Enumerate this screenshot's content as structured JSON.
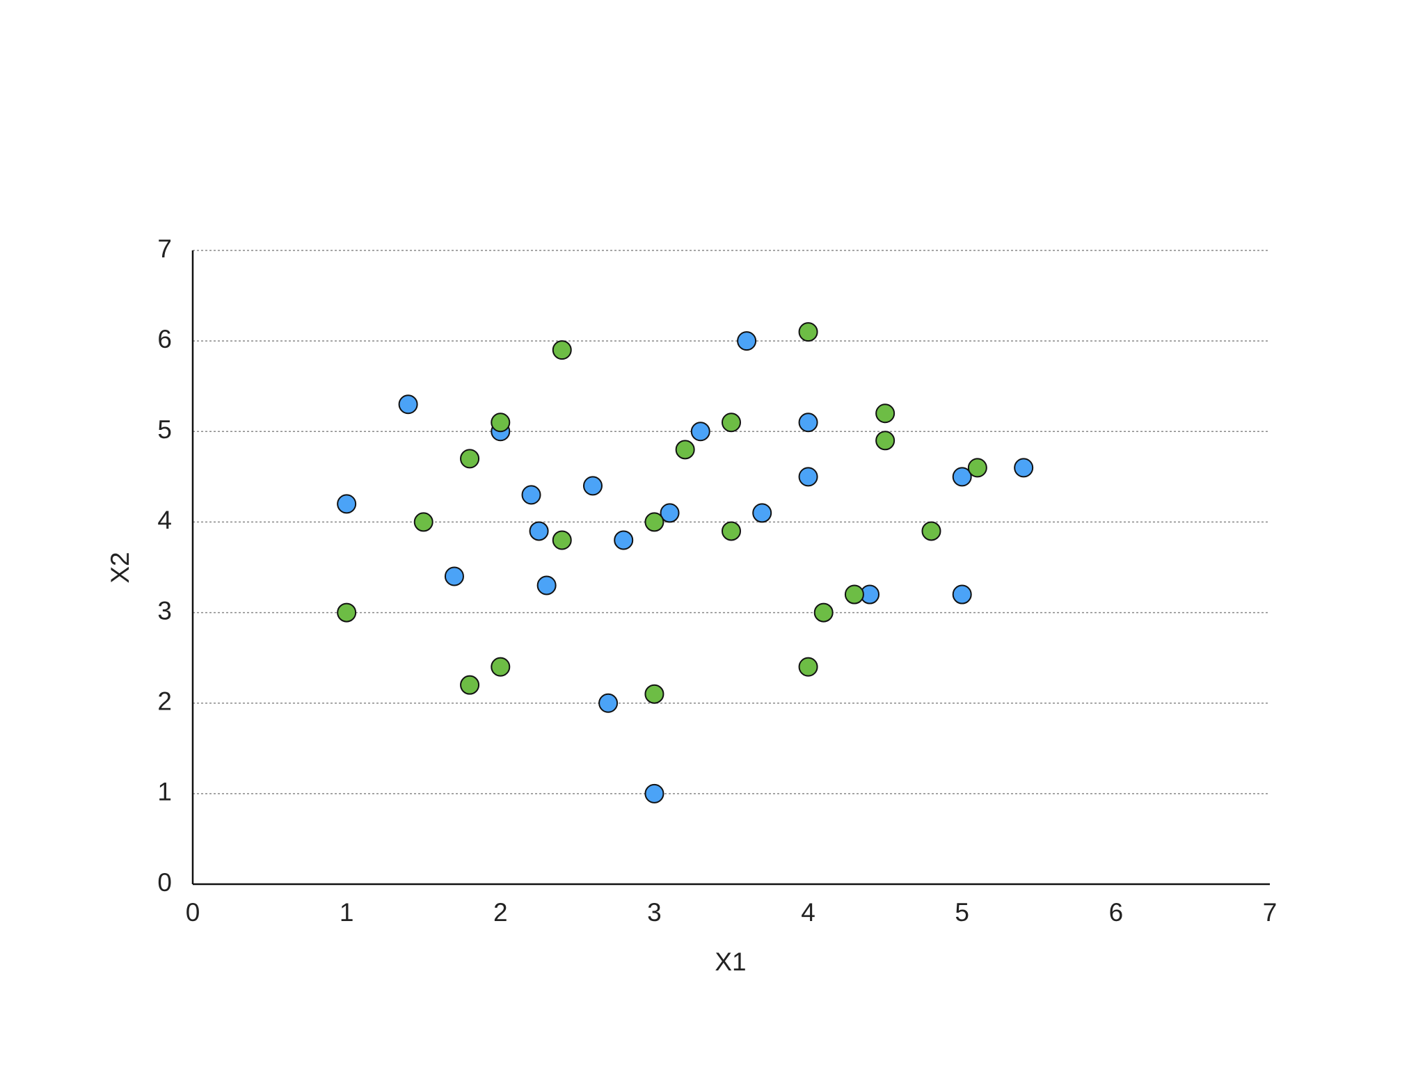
{
  "chart_data": {
    "type": "scatter",
    "xlabel": "X1",
    "ylabel": "X2",
    "xlim": [
      0,
      7
    ],
    "ylim": [
      0,
      7
    ],
    "xticks": [
      0,
      1,
      2,
      3,
      4,
      5,
      6,
      7
    ],
    "yticks": [
      0,
      1,
      2,
      3,
      4,
      5,
      6,
      7
    ],
    "grid": true,
    "series": [
      {
        "color": "#4ba3f7",
        "x": [
          1.4,
          1,
          2,
          1.7,
          2.2,
          2.25,
          2.3,
          2.6,
          2.8,
          2.7,
          3,
          3.1,
          3.3,
          3.6,
          3.7,
          4,
          4,
          4.4,
          5,
          5,
          5.4
        ],
        "values": [
          5.3,
          4.2,
          5,
          3.4,
          4.3,
          3.9,
          3.3,
          4.4,
          3.8,
          2,
          1,
          4.1,
          5,
          6,
          4.1,
          5.1,
          4.5,
          3.2,
          4.5,
          3.2,
          4.6
        ]
      },
      {
        "color": "#6dbd45",
        "x": [
          1,
          1.5,
          1.8,
          1.8,
          2,
          2,
          2.4,
          2.4,
          3,
          3,
          3.2,
          3.5,
          3.5,
          4,
          4,
          4.1,
          4.3,
          4.5,
          4.5,
          4.8,
          5.1
        ],
        "values": [
          3,
          4,
          4.7,
          2.2,
          5.1,
          2.4,
          5.9,
          3.8,
          4,
          2.1,
          4.8,
          5.1,
          3.9,
          6.1,
          2.4,
          3,
          3.2,
          5.2,
          4.9,
          3.9,
          4.6
        ]
      }
    ]
  }
}
